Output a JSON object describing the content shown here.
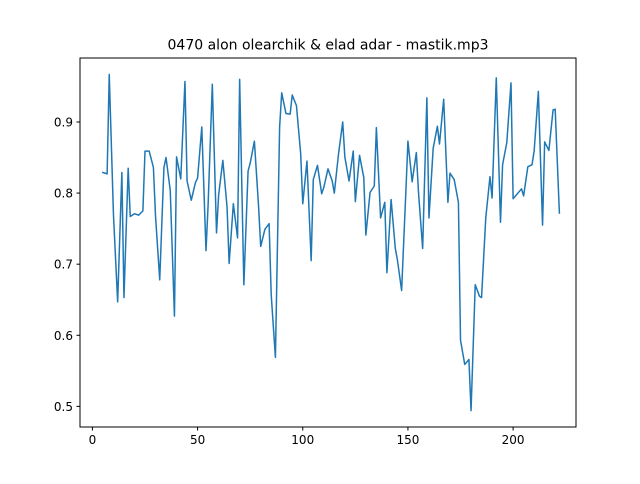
{
  "chart_data": {
    "type": "line",
    "title": "0470 alon olearchik & elad adar - mastik.mp3",
    "xlabel": "",
    "ylabel": "",
    "xlim": [
      -5.9,
      229.9
    ],
    "ylim": [
      0.471,
      0.99
    ],
    "xticks": [
      0,
      50,
      100,
      150,
      200
    ],
    "xtick_labels": [
      "0",
      "50",
      "100",
      "150",
      "200"
    ],
    "yticks": [
      0.5,
      0.6,
      0.7,
      0.8,
      0.9
    ],
    "ytick_labels": [
      "0.5",
      "0.6",
      "0.7",
      "0.8",
      "0.9"
    ],
    "grid": false,
    "series": [
      {
        "color": "#1f77b4",
        "x": [
          5,
          7,
          8,
          10,
          12,
          14,
          15,
          17,
          18,
          20,
          22,
          24,
          25,
          27,
          29,
          30,
          32,
          34,
          35,
          37,
          39,
          40,
          42,
          44,
          45,
          47,
          49,
          50,
          52,
          54,
          55,
          57,
          59,
          60,
          62,
          64,
          65,
          67,
          69,
          70,
          72,
          74,
          75,
          77,
          79,
          80,
          82,
          84,
          85,
          87,
          89,
          90,
          92,
          94,
          95,
          97,
          99,
          100,
          102,
          104,
          105,
          107,
          109,
          110,
          112,
          114,
          115,
          117,
          119,
          120,
          122,
          124,
          125,
          127,
          129,
          130,
          132,
          134,
          135,
          137,
          139,
          140,
          142,
          144,
          145,
          147,
          149,
          150,
          152,
          154,
          155,
          157,
          159,
          160,
          162,
          164,
          165,
          167,
          169,
          170,
          172,
          174,
          175,
          177,
          179,
          180,
          182,
          184,
          185,
          187,
          189,
          190,
          192,
          194,
          195,
          197,
          199,
          200,
          202,
          204,
          205,
          207,
          209,
          210,
          212,
          214,
          215,
          217,
          219,
          220,
          222
        ],
        "y": [
          0.829,
          0.827,
          0.967,
          0.77,
          0.647,
          0.829,
          0.653,
          0.835,
          0.767,
          0.771,
          0.769,
          0.775,
          0.859,
          0.859,
          0.836,
          0.768,
          0.678,
          0.836,
          0.85,
          0.804,
          0.627,
          0.851,
          0.82,
          0.957,
          0.817,
          0.79,
          0.815,
          0.821,
          0.893,
          0.719,
          0.783,
          0.953,
          0.744,
          0.797,
          0.846,
          0.781,
          0.701,
          0.785,
          0.737,
          0.96,
          0.671,
          0.831,
          0.842,
          0.873,
          0.781,
          0.725,
          0.749,
          0.757,
          0.657,
          0.569,
          0.893,
          0.941,
          0.912,
          0.911,
          0.938,
          0.923,
          0.856,
          0.785,
          0.845,
          0.705,
          0.819,
          0.839,
          0.799,
          0.808,
          0.834,
          0.817,
          0.8,
          0.855,
          0.9,
          0.851,
          0.817,
          0.859,
          0.788,
          0.853,
          0.822,
          0.741,
          0.801,
          0.81,
          0.892,
          0.765,
          0.787,
          0.688,
          0.791,
          0.722,
          0.706,
          0.663,
          0.801,
          0.873,
          0.816,
          0.857,
          0.802,
          0.722,
          0.934,
          0.765,
          0.863,
          0.894,
          0.869,
          0.932,
          0.787,
          0.828,
          0.819,
          0.787,
          0.593,
          0.559,
          0.566,
          0.494,
          0.671,
          0.655,
          0.653,
          0.765,
          0.823,
          0.793,
          0.962,
          0.759,
          0.84,
          0.871,
          0.955,
          0.792,
          0.799,
          0.806,
          0.796,
          0.837,
          0.84,
          0.859,
          0.943,
          0.755,
          0.872,
          0.86,
          0.917,
          0.918,
          0.772
        ]
      }
    ]
  }
}
